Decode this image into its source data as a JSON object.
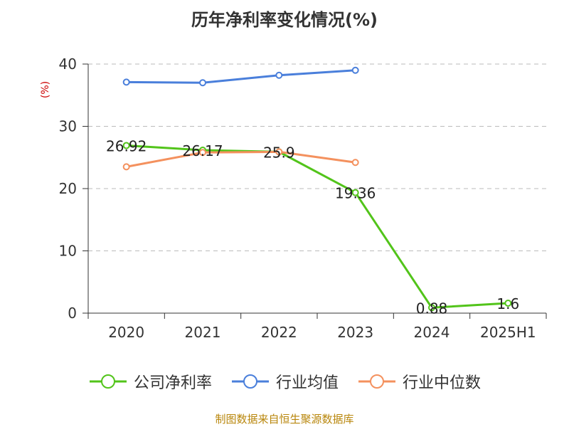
{
  "chart_data": {
    "type": "line",
    "title": "历年净利率变化情况(%)",
    "ylabel": "(%)",
    "xlabel": "",
    "categories": [
      "2020",
      "2021",
      "2022",
      "2023",
      "2024",
      "2025H1"
    ],
    "ylim": [
      0,
      40
    ],
    "yticks": [
      0,
      10,
      20,
      30,
      40
    ],
    "grid": true,
    "legend_position": "bottom",
    "series": [
      {
        "name": "公司净利率",
        "color": "#52c41a",
        "values": [
          26.92,
          26.17,
          25.9,
          19.36,
          0.88,
          1.6
        ],
        "labels": [
          "26.92",
          "26.17",
          "25.9",
          "19.36",
          "0.88",
          "1.6"
        ]
      },
      {
        "name": "行业均值",
        "color": "#4a7fdb",
        "values": [
          37.1,
          37.0,
          38.2,
          39.0,
          null,
          null
        ]
      },
      {
        "name": "行业中位数",
        "color": "#f4915e",
        "values": [
          23.5,
          25.8,
          25.9,
          24.2,
          null,
          null
        ]
      }
    ]
  },
  "colors": {
    "axis_label_color": "#cc0000",
    "source_color": "#b8860b",
    "grid_color": "#bbbbbb"
  },
  "source_note": "制图数据来自恒生聚源数据库"
}
